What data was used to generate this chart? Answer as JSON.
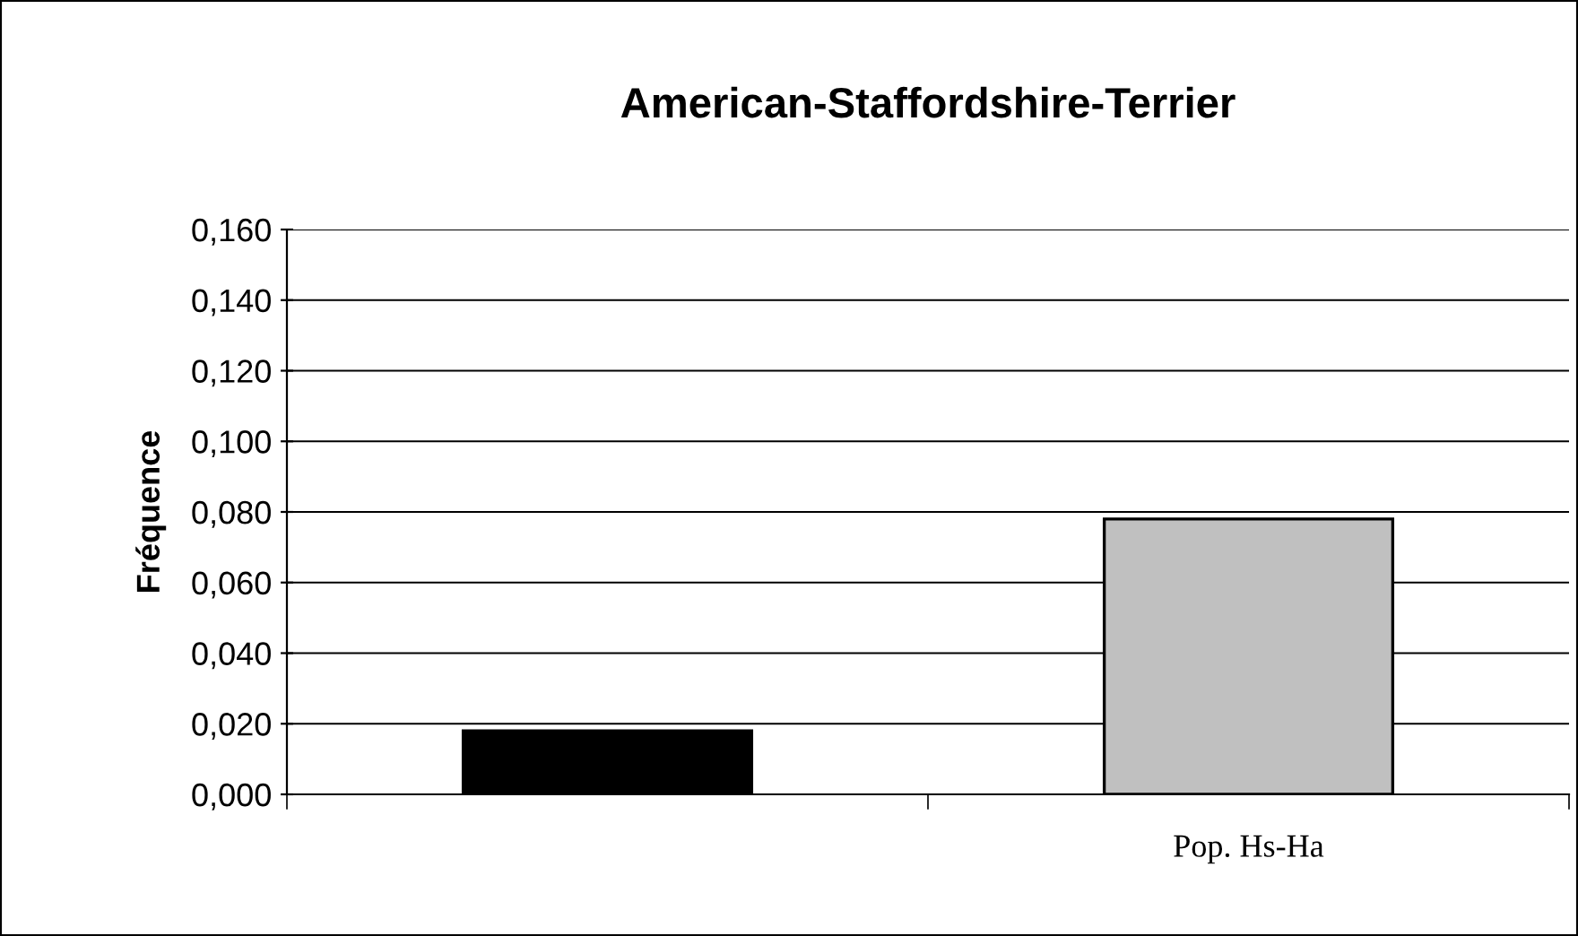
{
  "chart_data": {
    "type": "bar",
    "title": "American-Staffordshire-Terrier",
    "ylabel": "Fréquence",
    "categories": [
      null,
      "Pop. Hs-Ha"
    ],
    "values": [
      0.018,
      0.078
    ],
    "colors": [
      "#000000",
      "#c0c0c0"
    ],
    "ylim": [
      0,
      0.16
    ],
    "yticks": [
      {
        "value": 0,
        "label": "0,000"
      },
      {
        "value": 0.02,
        "label": "0,020"
      },
      {
        "value": 0.04,
        "label": "0,040"
      },
      {
        "value": 0.06,
        "label": "0,060"
      },
      {
        "value": 0.08,
        "label": "0,080"
      },
      {
        "value": 0.1,
        "label": "0,100"
      },
      {
        "value": 0.12,
        "label": "0,120"
      },
      {
        "value": 0.14,
        "label": "0,140"
      },
      {
        "value": 0.16,
        "label": "0,160"
      }
    ],
    "grid": "y",
    "legend": false
  }
}
